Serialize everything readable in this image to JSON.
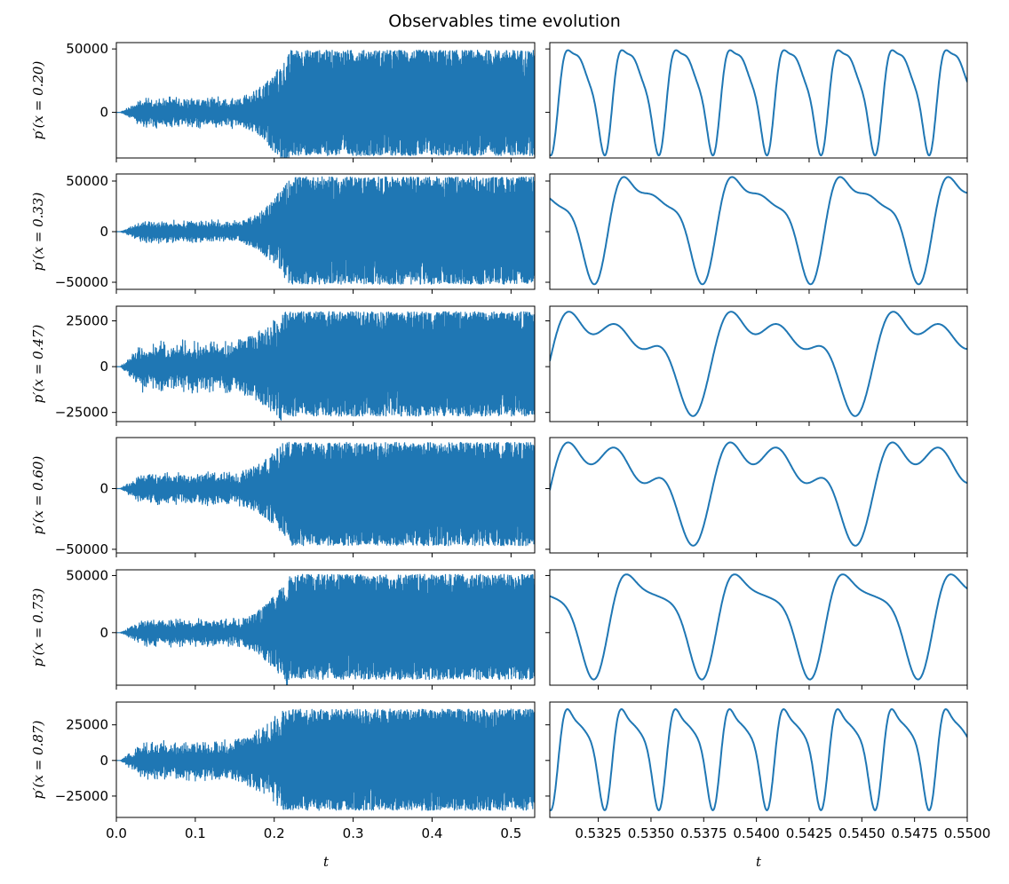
{
  "chart_data": {
    "type": "line",
    "title": "Observables time evolution",
    "xlabel": "t",
    "series_color": "#1f77b4",
    "columns": [
      {
        "xlim": [
          0.0,
          0.53
        ],
        "xticks": [
          0.0,
          0.1,
          0.2,
          0.3,
          0.4,
          0.5
        ],
        "xtick_labels": [
          "0.0",
          "0.1",
          "0.2",
          "0.3",
          "0.4",
          "0.5"
        ]
      },
      {
        "xlim": [
          0.5302,
          0.55
        ],
        "xticks": [
          0.5325,
          0.535,
          0.5375,
          0.54,
          0.5425,
          0.545,
          0.5475,
          0.55
        ],
        "xtick_labels": [
          "0.5325",
          "0.5350",
          "0.5375",
          "0.5400",
          "0.5425",
          "0.5450",
          "0.5475",
          "0.5500"
        ]
      }
    ],
    "rows": [
      {
        "ylabel": "p′(x = 0.20)",
        "ylim": [
          -36000,
          55000
        ],
        "yticks": [
          0,
          50000
        ],
        "ytick_labels": [
          "0",
          "50000"
        ],
        "growth": {
          "pre_amp": 13000,
          "final_amp": 48000,
          "t_on": 0.19,
          "t_sat": 0.22
        },
        "zoom": {
          "freq": 390,
          "max": 49000,
          "min": -34000,
          "harmonic_2": 0.35,
          "harmonic_3": 0.12
        }
      },
      {
        "ylabel": "p′(x = 0.33)",
        "ylim": [
          -57000,
          57000
        ],
        "yticks": [
          -50000,
          0,
          50000
        ],
        "ytick_labels": [
          "−50000",
          "0",
          "50000"
        ],
        "growth": {
          "pre_amp": 12000,
          "final_amp": 53000,
          "t_on": 0.19,
          "t_sat": 0.22
        },
        "zoom": {
          "freq": 195,
          "max": 54000,
          "min": -52000,
          "harmonic_2": 0.55,
          "harmonic_3": 0.2
        }
      },
      {
        "ylabel": "p′(x = 0.47)",
        "ylim": [
          -30000,
          33000
        ],
        "yticks": [
          -25000,
          0,
          25000
        ],
        "ytick_labels": [
          "−25000",
          "0",
          "25000"
        ],
        "growth": {
          "pre_amp": 15000,
          "final_amp": 30000,
          "t_on": 0.185,
          "t_sat": 0.21
        },
        "zoom": {
          "freq": 130,
          "max": 30000,
          "min": -27000,
          "harmonic_2": 0.6,
          "harmonic_3": 0.45
        }
      },
      {
        "ylabel": "p′(x = 0.60)",
        "ylim": [
          -53000,
          42000
        ],
        "yticks": [
          -50000,
          0
        ],
        "ytick_labels": [
          "−50000",
          "0"
        ],
        "growth": {
          "pre_amp": 15000,
          "final_amp": 45000,
          "t_on": 0.19,
          "t_sat": 0.22
        },
        "zoom": {
          "freq": 130,
          "max": 38000,
          "min": -47000,
          "harmonic_2": 0.5,
          "harmonic_3": 0.5
        }
      },
      {
        "ylabel": "p′(x = 0.73)",
        "ylim": [
          -46000,
          55000
        ],
        "yticks": [
          0,
          50000
        ],
        "ytick_labels": [
          "0",
          "50000"
        ],
        "growth": {
          "pre_amp": 13000,
          "final_amp": 50000,
          "t_on": 0.19,
          "t_sat": 0.22
        },
        "zoom": {
          "freq": 195,
          "max": 51000,
          "min": -41000,
          "harmonic_2": 0.5,
          "harmonic_3": 0.1
        }
      },
      {
        "ylabel": "p′(x = 0.87)",
        "ylim": [
          -40000,
          41000
        ],
        "yticks": [
          -25000,
          0,
          25000
        ],
        "ytick_labels": [
          "−25000",
          "0",
          "25000"
        ],
        "growth": {
          "pre_amp": 15000,
          "final_amp": 36000,
          "t_on": 0.18,
          "t_sat": 0.21
        },
        "zoom": {
          "freq": 390,
          "max": 36000,
          "min": -35000,
          "harmonic_2": 0.45,
          "harmonic_3": 0.1
        }
      }
    ]
  }
}
